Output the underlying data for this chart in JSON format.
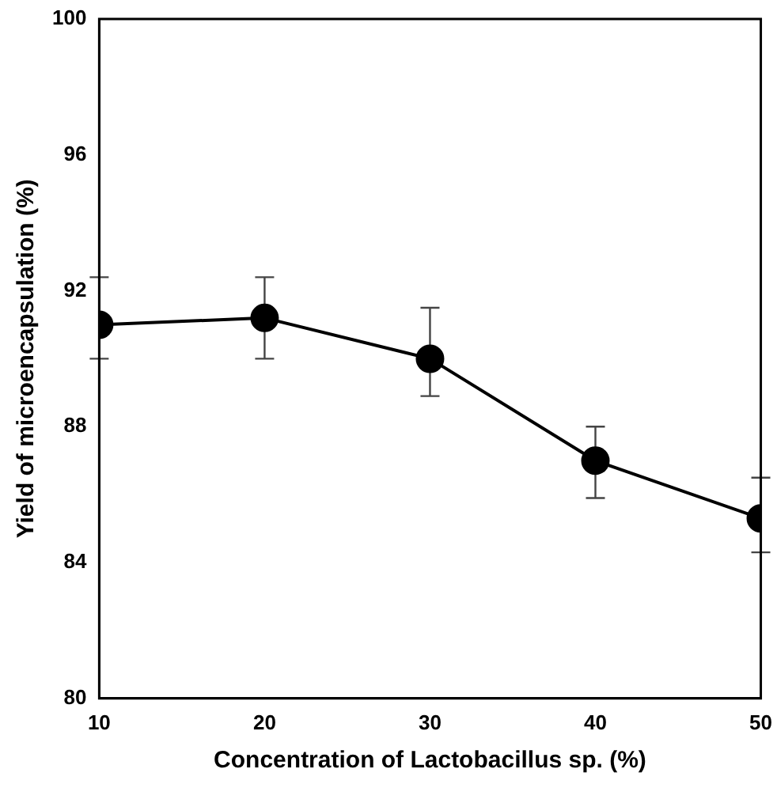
{
  "chart_data": {
    "type": "line",
    "xlabel": "Concentration of Lactobacillus sp. (%)",
    "ylabel": "Yield of microencapsulation (%)",
    "x": [
      10,
      20,
      30,
      40,
      50
    ],
    "series": [
      {
        "color": "#000000",
        "values": [
          91.0,
          91.2,
          90.0,
          87.0,
          85.3
        ],
        "errors": [
          [
            90.0,
            92.4
          ],
          [
            90.0,
            92.4
          ],
          [
            88.9,
            91.5
          ],
          [
            85.9,
            88.0
          ],
          [
            84.3,
            86.5
          ]
        ]
      }
    ],
    "xlim": [
      10,
      50
    ],
    "xticks": [
      10,
      20,
      30,
      40,
      50
    ],
    "ylim": [
      80,
      100
    ],
    "yticks": [
      80,
      84,
      88,
      92,
      96,
      100
    ],
    "grid": false,
    "legend": false,
    "marker": "circle",
    "line_style": "solid"
  }
}
